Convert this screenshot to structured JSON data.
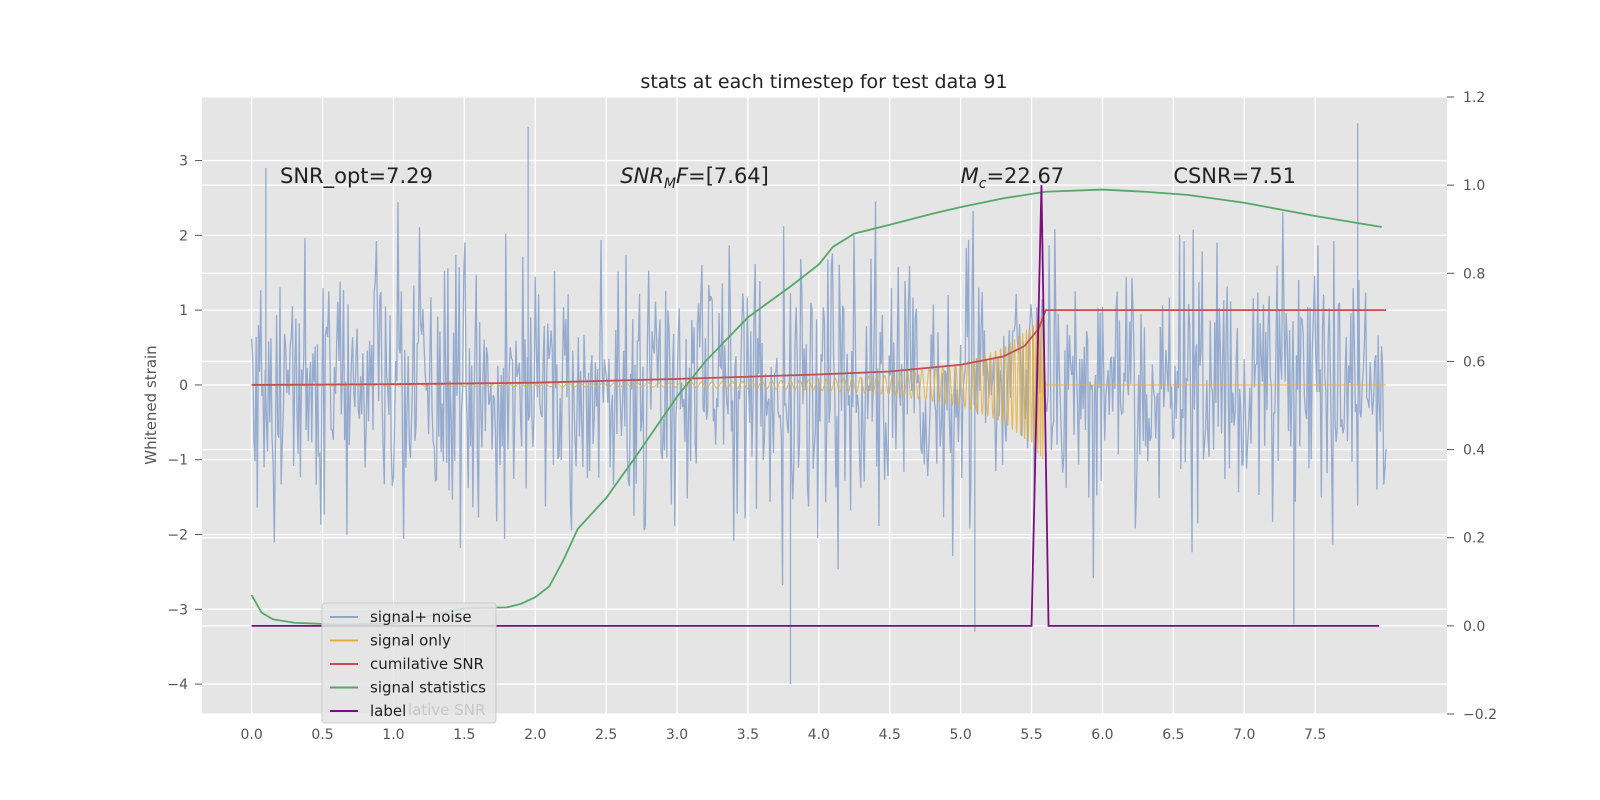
{
  "chart_data": {
    "type": "line",
    "title": "stats at each timestep for test data 91",
    "ylabel_left": "Whitened strain",
    "ylabel_right": "",
    "xlabel": "",
    "xlim": [
      -0.35,
      8.43
    ],
    "ylim_left": [
      -4.4,
      3.85
    ],
    "ylim_right": [
      -0.2,
      1.2
    ],
    "x_ticks": [
      "0.0",
      "0.5",
      "1.0",
      "1.5",
      "2.0",
      "2.5",
      "3.0",
      "3.5",
      "4.0",
      "4.5",
      "5.0",
      "5.5",
      "6.0",
      "6.5",
      "7.0",
      "7.5"
    ],
    "y_ticks_left": [
      "−4",
      "−3",
      "−2",
      "−1",
      "0",
      "1",
      "2",
      "3"
    ],
    "y_ticks_right": [
      "−0.2",
      "0.0",
      "0.2",
      "0.4",
      "0.6",
      "0.8",
      "1.0",
      "1.2"
    ],
    "grid": true,
    "legend_position": "lower-left",
    "annotations": [
      {
        "text": "SNR_opt=7.29",
        "x": 0.2
      },
      {
        "text": "SNR",
        "sub": "M",
        "tail": "F=[7.64]",
        "italic": true,
        "x": 2.6
      },
      {
        "text": "M",
        "sub": "c",
        "tail": "=22.67",
        "italic": true,
        "x": 5.0
      },
      {
        "text": "CSNR=7.51",
        "x": 6.5
      }
    ],
    "series": [
      {
        "name": "signal+ noise",
        "axis": "left",
        "color": "#8fa6cc",
        "x": [
          0.0,
          8.0
        ],
        "note": "noisy whitened strain, amplitude envelope roughly ±2 with spikes reaching 3.5 and -4.0",
        "peaks": [
          [
            0.1,
            2.9
          ],
          [
            1.95,
            3.45
          ],
          [
            3.8,
            -4.0
          ],
          [
            5.1,
            -3.3
          ],
          [
            7.8,
            3.5
          ],
          [
            7.35,
            -3.2
          ]
        ]
      },
      {
        "name": "signal only",
        "axis": "left",
        "color": "#e5ae38",
        "x": [
          0.0,
          5.6
        ],
        "envelope": [
          [
            0.0,
            0.01
          ],
          [
            3.0,
            0.03
          ],
          [
            4.0,
            0.07
          ],
          [
            4.5,
            0.13
          ],
          [
            5.0,
            0.28
          ],
          [
            5.3,
            0.5
          ],
          [
            5.5,
            0.8
          ],
          [
            5.58,
            1.0
          ],
          [
            5.6,
            0.0
          ]
        ]
      },
      {
        "name": "cumilative SNR",
        "axis": "left",
        "color": "#c44e52",
        "points": [
          [
            0.0,
            0.0
          ],
          [
            1.0,
            0.01
          ],
          [
            2.0,
            0.03
          ],
          [
            3.0,
            0.08
          ],
          [
            4.0,
            0.14
          ],
          [
            4.5,
            0.18
          ],
          [
            5.0,
            0.27
          ],
          [
            5.3,
            0.38
          ],
          [
            5.45,
            0.52
          ],
          [
            5.55,
            0.75
          ],
          [
            5.6,
            1.0
          ],
          [
            8.0,
            1.0
          ]
        ]
      },
      {
        "name": "signal statistics",
        "axis": "right",
        "color": "#55a868",
        "points": [
          [
            0.0,
            0.07
          ],
          [
            0.07,
            0.03
          ],
          [
            0.15,
            0.015
          ],
          [
            0.3,
            0.007
          ],
          [
            0.6,
            0.003
          ],
          [
            1.0,
            0.005
          ],
          [
            1.5,
            0.04
          ],
          [
            1.8,
            0.042
          ],
          [
            1.9,
            0.05
          ],
          [
            2.0,
            0.065
          ],
          [
            2.1,
            0.09
          ],
          [
            2.2,
            0.15
          ],
          [
            2.3,
            0.22
          ],
          [
            2.5,
            0.29
          ],
          [
            2.7,
            0.38
          ],
          [
            3.0,
            0.52
          ],
          [
            3.2,
            0.6
          ],
          [
            3.5,
            0.7
          ],
          [
            3.8,
            0.77
          ],
          [
            4.0,
            0.82
          ],
          [
            4.1,
            0.86
          ],
          [
            4.25,
            0.89
          ],
          [
            4.5,
            0.91
          ],
          [
            4.8,
            0.935
          ],
          [
            5.0,
            0.95
          ],
          [
            5.3,
            0.97
          ],
          [
            5.6,
            0.985
          ],
          [
            6.0,
            0.99
          ],
          [
            6.3,
            0.985
          ],
          [
            6.6,
            0.978
          ],
          [
            7.0,
            0.96
          ],
          [
            7.5,
            0.93
          ],
          [
            7.97,
            0.905
          ]
        ]
      },
      {
        "name": "label",
        "axis": "right",
        "color": "#7b0e7f",
        "points": [
          [
            0.0,
            0.0
          ],
          [
            5.5,
            0.0
          ],
          [
            5.57,
            1.0
          ],
          [
            5.62,
            0.0
          ],
          [
            7.95,
            0.0
          ]
        ]
      }
    ],
    "legend": [
      "signal+ noise",
      "signal only",
      "cumilative SNR",
      "signal statistics",
      "label"
    ],
    "legend_ghost_text": "lative SNR"
  }
}
